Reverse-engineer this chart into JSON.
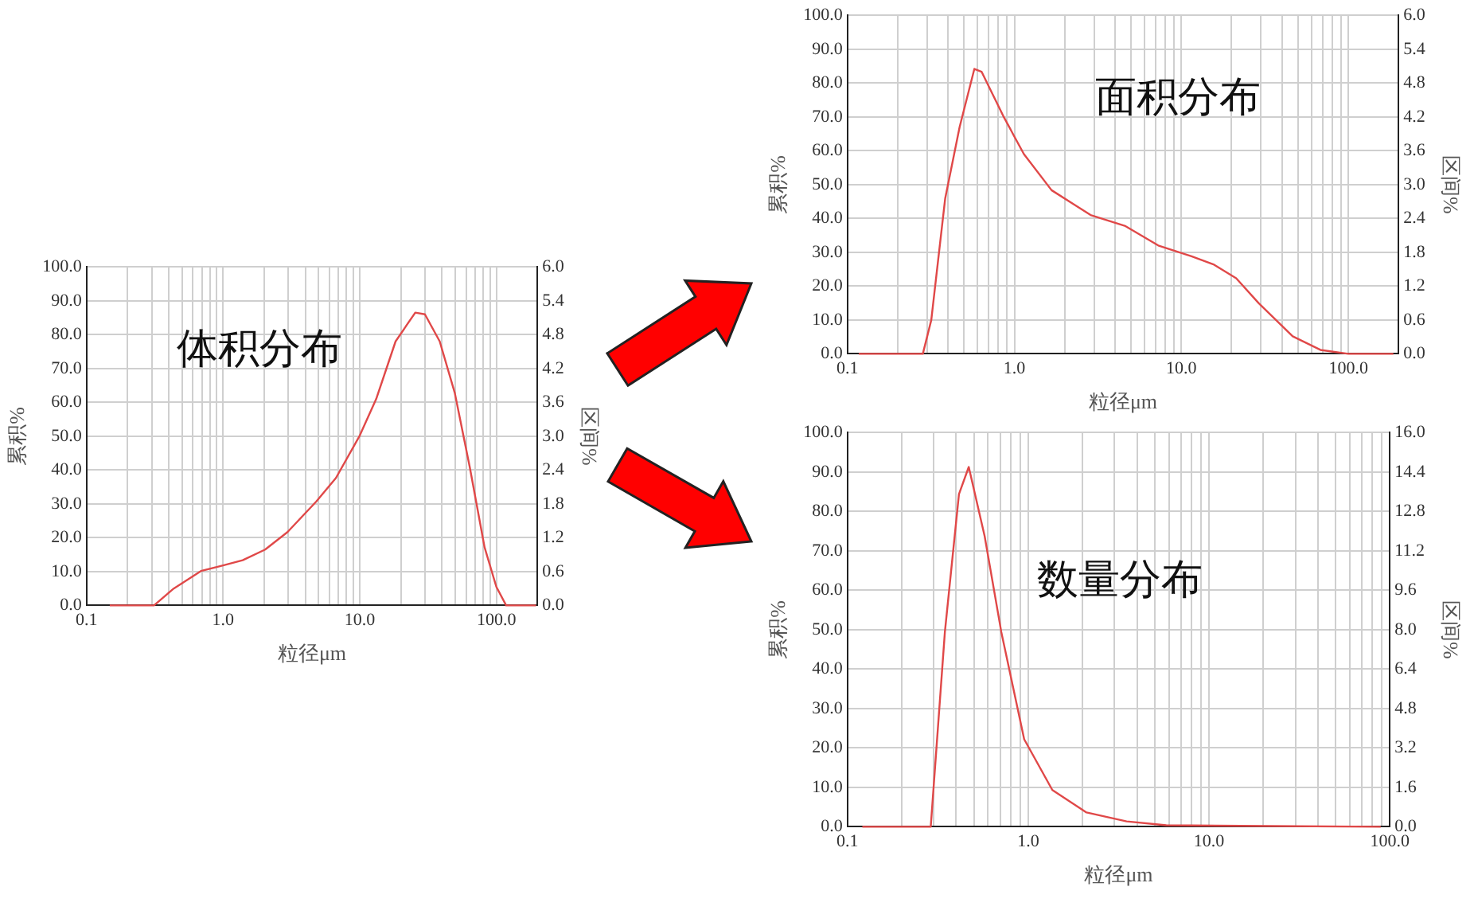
{
  "chart_data": [
    {
      "type": "line",
      "annotations": [
        "体积分布"
      ],
      "xlabel": "粒径μm",
      "ylabel": "累积%",
      "y2label": "区间%",
      "log": "x",
      "grid": true,
      "legend": false,
      "marker": "none",
      "xlim": [
        0.1,
        200
      ],
      "xticks": [
        {
          "value": 0.1,
          "label": "0.1"
        },
        {
          "value": 0.2,
          "label": null
        },
        {
          "value": 0.3,
          "label": null
        },
        {
          "value": 0.4,
          "label": null
        },
        {
          "value": 0.5,
          "label": null
        },
        {
          "value": 0.6,
          "label": null
        },
        {
          "value": 0.7,
          "label": null
        },
        {
          "value": 0.8,
          "label": null
        },
        {
          "value": 0.9,
          "label": null
        },
        {
          "value": 1,
          "label": "1.0"
        },
        {
          "value": 2,
          "label": null
        },
        {
          "value": 3,
          "label": null
        },
        {
          "value": 4,
          "label": null
        },
        {
          "value": 5,
          "label": null
        },
        {
          "value": 6,
          "label": null
        },
        {
          "value": 7,
          "label": null
        },
        {
          "value": 8,
          "label": null
        },
        {
          "value": 9,
          "label": null
        },
        {
          "value": 10,
          "label": "10.0"
        },
        {
          "value": 20,
          "label": null
        },
        {
          "value": 30,
          "label": null
        },
        {
          "value": 40,
          "label": null
        },
        {
          "value": 50,
          "label": null
        },
        {
          "value": 60,
          "label": null
        },
        {
          "value": 70,
          "label": null
        },
        {
          "value": 80,
          "label": null
        },
        {
          "value": 90,
          "label": null
        },
        {
          "value": 100,
          "label": "100.0"
        }
      ],
      "ylim": [
        0,
        100
      ],
      "yticks": [
        {
          "value": 0,
          "label": "0.0"
        },
        {
          "value": 10,
          "label": "10.0"
        },
        {
          "value": 20,
          "label": "20.0"
        },
        {
          "value": 30,
          "label": "30.0"
        },
        {
          "value": 40,
          "label": "40.0"
        },
        {
          "value": 50,
          "label": "50.0"
        },
        {
          "value": 60,
          "label": "60.0"
        },
        {
          "value": 70,
          "label": "70.0"
        },
        {
          "value": 80,
          "label": "80.0"
        },
        {
          "value": 90,
          "label": "90.0"
        },
        {
          "value": 100,
          "label": "100.0"
        }
      ],
      "y2lim": [
        0,
        6
      ],
      "y2ticks": [
        {
          "value": 0,
          "label": "0.0"
        },
        {
          "value": 0.6,
          "label": "0.6"
        },
        {
          "value": 1.2,
          "label": "1.2"
        },
        {
          "value": 1.8,
          "label": "1.8"
        },
        {
          "value": 2.4,
          "label": "2.4"
        },
        {
          "value": 3,
          "label": "3.0"
        },
        {
          "value": 3.6,
          "label": "3.6"
        },
        {
          "value": 4.2,
          "label": "4.2"
        },
        {
          "value": 4.8,
          "label": "4.8"
        },
        {
          "value": 5.4,
          "label": "5.4"
        },
        {
          "value": 6,
          "label": "6.0"
        }
      ],
      "series": [
        {
          "color": "#e04848",
          "axis": "y2",
          "x": [
            0.148,
            0.312,
            0.435,
            0.688,
            1.0,
            1.39,
            2.03,
            2.96,
            4.8,
            6.7,
            10,
            13.2,
            18.3,
            25.5,
            30,
            38.5,
            49.7,
            63.9,
            82,
            100,
            118,
            195
          ],
          "values": [
            0,
            0,
            0.3,
            0.61,
            0.71,
            0.8,
            0.99,
            1.3,
            1.84,
            2.26,
            3.01,
            3.66,
            4.68,
            5.19,
            5.16,
            4.68,
            3.76,
            2.45,
            1.03,
            0.33,
            0,
            0
          ]
        }
      ]
    },
    {
      "type": "line",
      "annotations": [
        "面积分布"
      ],
      "xlabel": "粒径μm",
      "ylabel": "累积%",
      "y2label": "区间%",
      "log": "x",
      "grid": true,
      "legend": false,
      "marker": "none",
      "xlim": [
        0.1,
        200
      ],
      "xticks": [
        {
          "value": 0.1,
          "label": "0.1"
        },
        {
          "value": 0.2,
          "label": null
        },
        {
          "value": 0.3,
          "label": null
        },
        {
          "value": 0.4,
          "label": null
        },
        {
          "value": 0.5,
          "label": null
        },
        {
          "value": 0.6,
          "label": null
        },
        {
          "value": 0.7,
          "label": null
        },
        {
          "value": 0.8,
          "label": null
        },
        {
          "value": 0.9,
          "label": null
        },
        {
          "value": 1,
          "label": "1.0"
        },
        {
          "value": 2,
          "label": null
        },
        {
          "value": 3,
          "label": null
        },
        {
          "value": 4,
          "label": null
        },
        {
          "value": 5,
          "label": null
        },
        {
          "value": 6,
          "label": null
        },
        {
          "value": 7,
          "label": null
        },
        {
          "value": 8,
          "label": null
        },
        {
          "value": 9,
          "label": null
        },
        {
          "value": 10,
          "label": "10.0"
        },
        {
          "value": 20,
          "label": null
        },
        {
          "value": 30,
          "label": null
        },
        {
          "value": 40,
          "label": null
        },
        {
          "value": 50,
          "label": null
        },
        {
          "value": 60,
          "label": null
        },
        {
          "value": 70,
          "label": null
        },
        {
          "value": 80,
          "label": null
        },
        {
          "value": 90,
          "label": null
        },
        {
          "value": 100,
          "label": "100.0"
        }
      ],
      "ylim": [
        0,
        100
      ],
      "yticks": [
        {
          "value": 0,
          "label": "0.0"
        },
        {
          "value": 10,
          "label": "10.0"
        },
        {
          "value": 20,
          "label": "20.0"
        },
        {
          "value": 30,
          "label": "30.0"
        },
        {
          "value": 40,
          "label": "40.0"
        },
        {
          "value": 50,
          "label": "50.0"
        },
        {
          "value": 60,
          "label": "60.0"
        },
        {
          "value": 70,
          "label": "70.0"
        },
        {
          "value": 80,
          "label": "80.0"
        },
        {
          "value": 90,
          "label": "90.0"
        },
        {
          "value": 100,
          "label": "100.0"
        }
      ],
      "y2lim": [
        0,
        6
      ],
      "y2ticks": [
        {
          "value": 0,
          "label": "0.0"
        },
        {
          "value": 0.6,
          "label": "0.6"
        },
        {
          "value": 1.2,
          "label": "1.2"
        },
        {
          "value": 1.8,
          "label": "1.8"
        },
        {
          "value": 2.4,
          "label": "2.4"
        },
        {
          "value": 3,
          "label": "3.0"
        },
        {
          "value": 3.6,
          "label": "3.6"
        },
        {
          "value": 4.2,
          "label": "4.2"
        },
        {
          "value": 4.8,
          "label": "4.8"
        },
        {
          "value": 5.4,
          "label": "5.4"
        },
        {
          "value": 6,
          "label": "6.0"
        }
      ],
      "series": [
        {
          "color": "#e04848",
          "axis": "y2",
          "x": [
            0.117,
            0.283,
            0.318,
            0.385,
            0.47,
            0.576,
            0.636,
            0.856,
            1.14,
            1.67,
            2.86,
            4.58,
            7.27,
            11.5,
            15.7,
            21.3,
            29,
            46.4,
            68,
            100,
            186
          ],
          "values": [
            0,
            0,
            0.6,
            2.75,
            4.02,
            5.05,
            5.0,
            4.22,
            3.54,
            2.9,
            2.46,
            2.27,
            1.92,
            1.73,
            1.58,
            1.34,
            0.9,
            0.31,
            0.07,
            0,
            0
          ]
        }
      ]
    },
    {
      "type": "line",
      "annotations": [
        "数量分布"
      ],
      "xlabel": "粒径μm",
      "ylabel": "累积%",
      "y2label": "区间%",
      "log": "x",
      "grid": true,
      "legend": false,
      "marker": "none",
      "xlim": [
        0.1,
        100
      ],
      "xticks": [
        {
          "value": 0.1,
          "label": "0.1"
        },
        {
          "value": 0.2,
          "label": null
        },
        {
          "value": 0.3,
          "label": null
        },
        {
          "value": 0.4,
          "label": null
        },
        {
          "value": 0.5,
          "label": null
        },
        {
          "value": 0.6,
          "label": null
        },
        {
          "value": 0.7,
          "label": null
        },
        {
          "value": 0.8,
          "label": null
        },
        {
          "value": 0.9,
          "label": null
        },
        {
          "value": 1,
          "label": "1.0"
        },
        {
          "value": 2,
          "label": null
        },
        {
          "value": 3,
          "label": null
        },
        {
          "value": 4,
          "label": null
        },
        {
          "value": 5,
          "label": null
        },
        {
          "value": 6,
          "label": null
        },
        {
          "value": 7,
          "label": null
        },
        {
          "value": 8,
          "label": null
        },
        {
          "value": 9,
          "label": null
        },
        {
          "value": 10,
          "label": "10.0"
        },
        {
          "value": 20,
          "label": null
        },
        {
          "value": 30,
          "label": null
        },
        {
          "value": 40,
          "label": null
        },
        {
          "value": 50,
          "label": null
        },
        {
          "value": 60,
          "label": null
        },
        {
          "value": 70,
          "label": null
        },
        {
          "value": 80,
          "label": null
        },
        {
          "value": 90,
          "label": null
        },
        {
          "value": 100,
          "label": "100.0"
        }
      ],
      "ylim": [
        0,
        100
      ],
      "yticks": [
        {
          "value": 0,
          "label": "0.0"
        },
        {
          "value": 10,
          "label": "10.0"
        },
        {
          "value": 20,
          "label": "20.0"
        },
        {
          "value": 30,
          "label": "30.0"
        },
        {
          "value": 40,
          "label": "40.0"
        },
        {
          "value": 50,
          "label": "50.0"
        },
        {
          "value": 60,
          "label": "60.0"
        },
        {
          "value": 70,
          "label": "70.0"
        },
        {
          "value": 80,
          "label": "80.0"
        },
        {
          "value": 90,
          "label": "90.0"
        },
        {
          "value": 100,
          "label": "100.0"
        }
      ],
      "y2lim": [
        0,
        16
      ],
      "y2ticks": [
        {
          "value": 0,
          "label": "0.0"
        },
        {
          "value": 1.6,
          "label": "1.6"
        },
        {
          "value": 3.2,
          "label": "3.2"
        },
        {
          "value": 4.8,
          "label": "4.8"
        },
        {
          "value": 6.4,
          "label": "6.4"
        },
        {
          "value": 8,
          "label": "8.0"
        },
        {
          "value": 9.6,
          "label": "9.6"
        },
        {
          "value": 11.2,
          "label": "11.2"
        },
        {
          "value": 12.8,
          "label": "12.8"
        },
        {
          "value": 14.4,
          "label": "14.4"
        },
        {
          "value": 16,
          "label": "16.0"
        }
      ],
      "series": [
        {
          "color": "#e04848",
          "axis": "y2",
          "x": [
            0.121,
            0.289,
            0.346,
            0.414,
            0.469,
            0.574,
            0.71,
            0.95,
            1.36,
            2.1,
            3.5,
            5.8,
            89
          ],
          "values": [
            0,
            0,
            7.9,
            13.5,
            14.6,
            11.8,
            7.9,
            3.55,
            1.49,
            0.58,
            0.22,
            0.06,
            0
          ]
        }
      ]
    }
  ]
}
